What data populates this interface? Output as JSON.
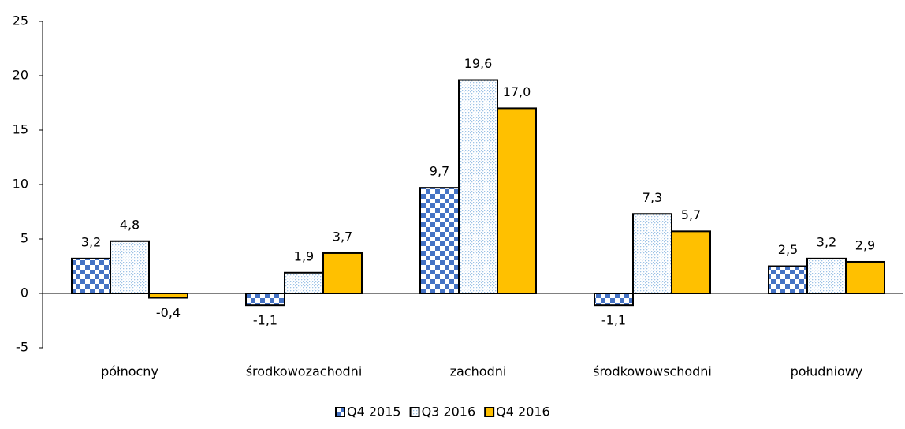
{
  "chart_data": {
    "type": "bar",
    "categories": [
      "północny",
      "środkowozachodni",
      "zachodni",
      "środkowowschodni",
      "południowy"
    ],
    "series": [
      {
        "name": "Q4 2015",
        "color": "#4472c4",
        "pattern": "checker",
        "values": [
          3.2,
          -1.1,
          9.7,
          -1.1,
          2.5
        ],
        "value_labels": [
          "3,2",
          "-1,1",
          "9,7",
          "-1,1",
          "2,5"
        ]
      },
      {
        "name": "Q3 2016",
        "color": "#9dc3e6",
        "pattern": "dots",
        "values": [
          4.8,
          1.9,
          19.6,
          7.3,
          3.2
        ],
        "value_labels": [
          "4,8",
          "1,9",
          "19,6",
          "7,3",
          "3,2"
        ]
      },
      {
        "name": "Q4 2016",
        "color": "#ffc000",
        "pattern": "solid",
        "values": [
          -0.4,
          3.7,
          17.0,
          5.7,
          2.9
        ],
        "value_labels": [
          "-0,4",
          "3,7",
          "17,0",
          "5,7",
          "2,9"
        ]
      }
    ],
    "ylim": [
      -5,
      25
    ],
    "yticks": [
      -5,
      0,
      5,
      10,
      15,
      20,
      25
    ],
    "legend": "bottom"
  }
}
